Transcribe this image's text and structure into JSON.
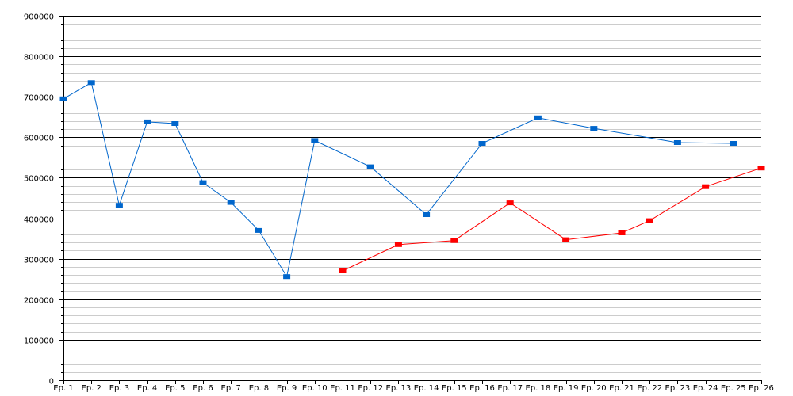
{
  "chart_data": {
    "type": "line",
    "title": "",
    "xlabel": "",
    "ylabel": "",
    "ylim": [
      0,
      900000
    ],
    "y_major_step": 100000,
    "y_minor_step": 20000,
    "y_tick_labels": [
      "0",
      "100000",
      "200000",
      "300000",
      "400000",
      "500000",
      "600000",
      "700000",
      "800000",
      "900000"
    ],
    "grid": true,
    "categories": [
      "Ep. 1",
      "Ep. 2",
      "Ep. 3",
      "Ep. 4",
      "Ep. 5",
      "Ep. 6",
      "Ep. 7",
      "Ep. 8",
      "Ep. 9",
      "Ep. 10",
      "Ep. 11",
      "Ep. 12",
      "Ep. 13",
      "Ep. 14",
      "Ep. 15",
      "Ep. 16",
      "Ep. 17",
      "Ep. 18",
      "Ep. 19",
      "Ep. 20",
      "Ep. 21",
      "Ep. 22",
      "Ep. 23",
      "Ep. 24",
      "Ep. 25",
      "Ep. 26"
    ],
    "series": [
      {
        "color": "#0066cc",
        "values": [
          695000,
          735000,
          432000,
          638000,
          634000,
          488000,
          439000,
          370000,
          256000,
          592000,
          null,
          527000,
          null,
          409000,
          null,
          585000,
          null,
          648000,
          null,
          622000,
          null,
          null,
          587000,
          null,
          585000,
          null
        ]
      },
      {
        "color": "#ff0000",
        "values": [
          null,
          null,
          null,
          null,
          null,
          null,
          null,
          null,
          null,
          null,
          270000,
          null,
          335000,
          null,
          345000,
          null,
          438000,
          null,
          347000,
          null,
          364000,
          394000,
          null,
          478000,
          null,
          524000
        ]
      }
    ]
  }
}
